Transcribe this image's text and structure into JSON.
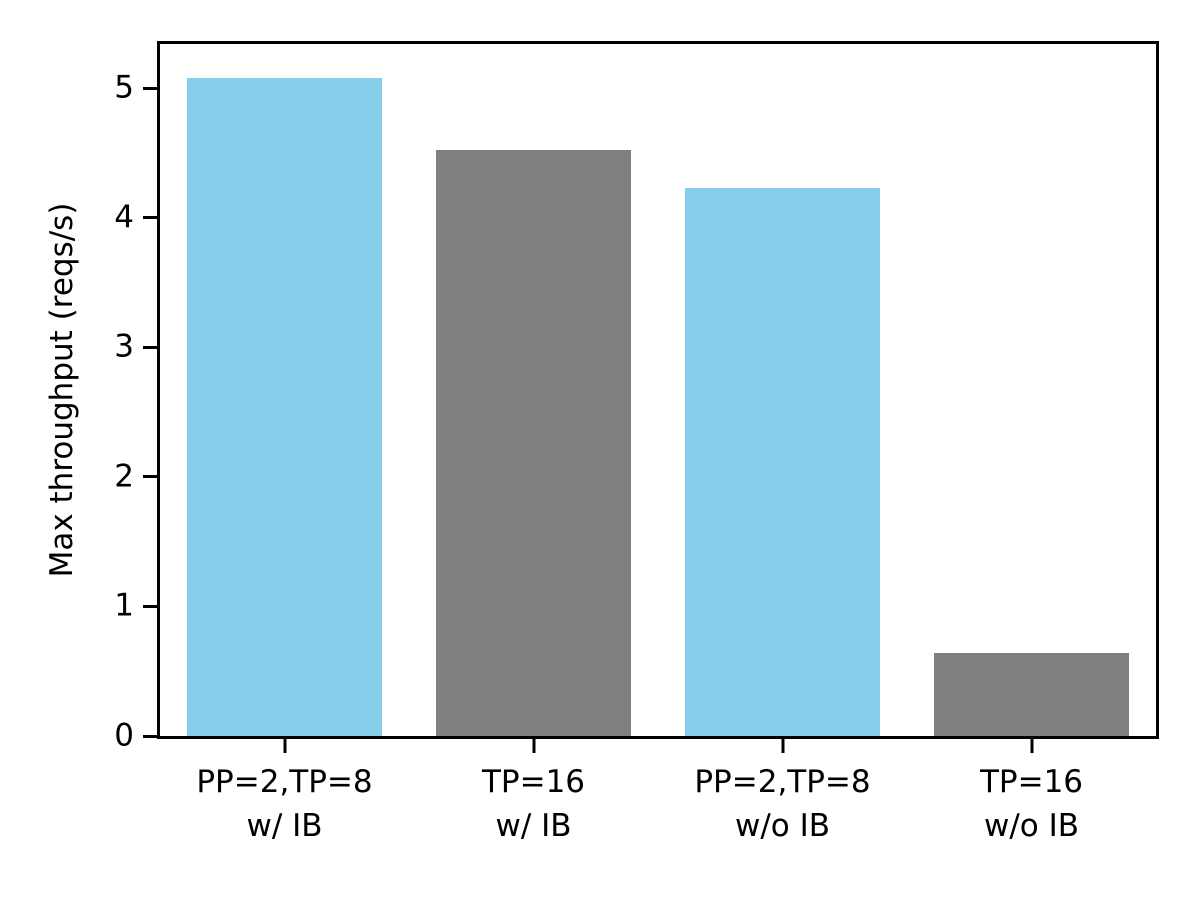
{
  "chart_data": {
    "type": "bar",
    "title": "",
    "xlabel": "",
    "ylabel": "Max throughput (reqs/s)",
    "categories": [
      "PP=2,TP=8\nw/ IB",
      "TP=16\nw/ IB",
      "PP=2,TP=8\nw/o IB",
      "TP=16\nw/o IB"
    ],
    "values": [
      5.08,
      4.52,
      4.23,
      0.64
    ],
    "bar_colors": [
      "#87CEEB",
      "#808080",
      "#87CEEB",
      "#808080"
    ],
    "yticks": [
      0,
      1,
      2,
      3,
      4,
      5
    ],
    "ylim": [
      0,
      5.34
    ],
    "bar_width_frac": 0.78,
    "grid": false,
    "legend": null,
    "spine_color": "#000000",
    "background_color": "#ffffff"
  }
}
